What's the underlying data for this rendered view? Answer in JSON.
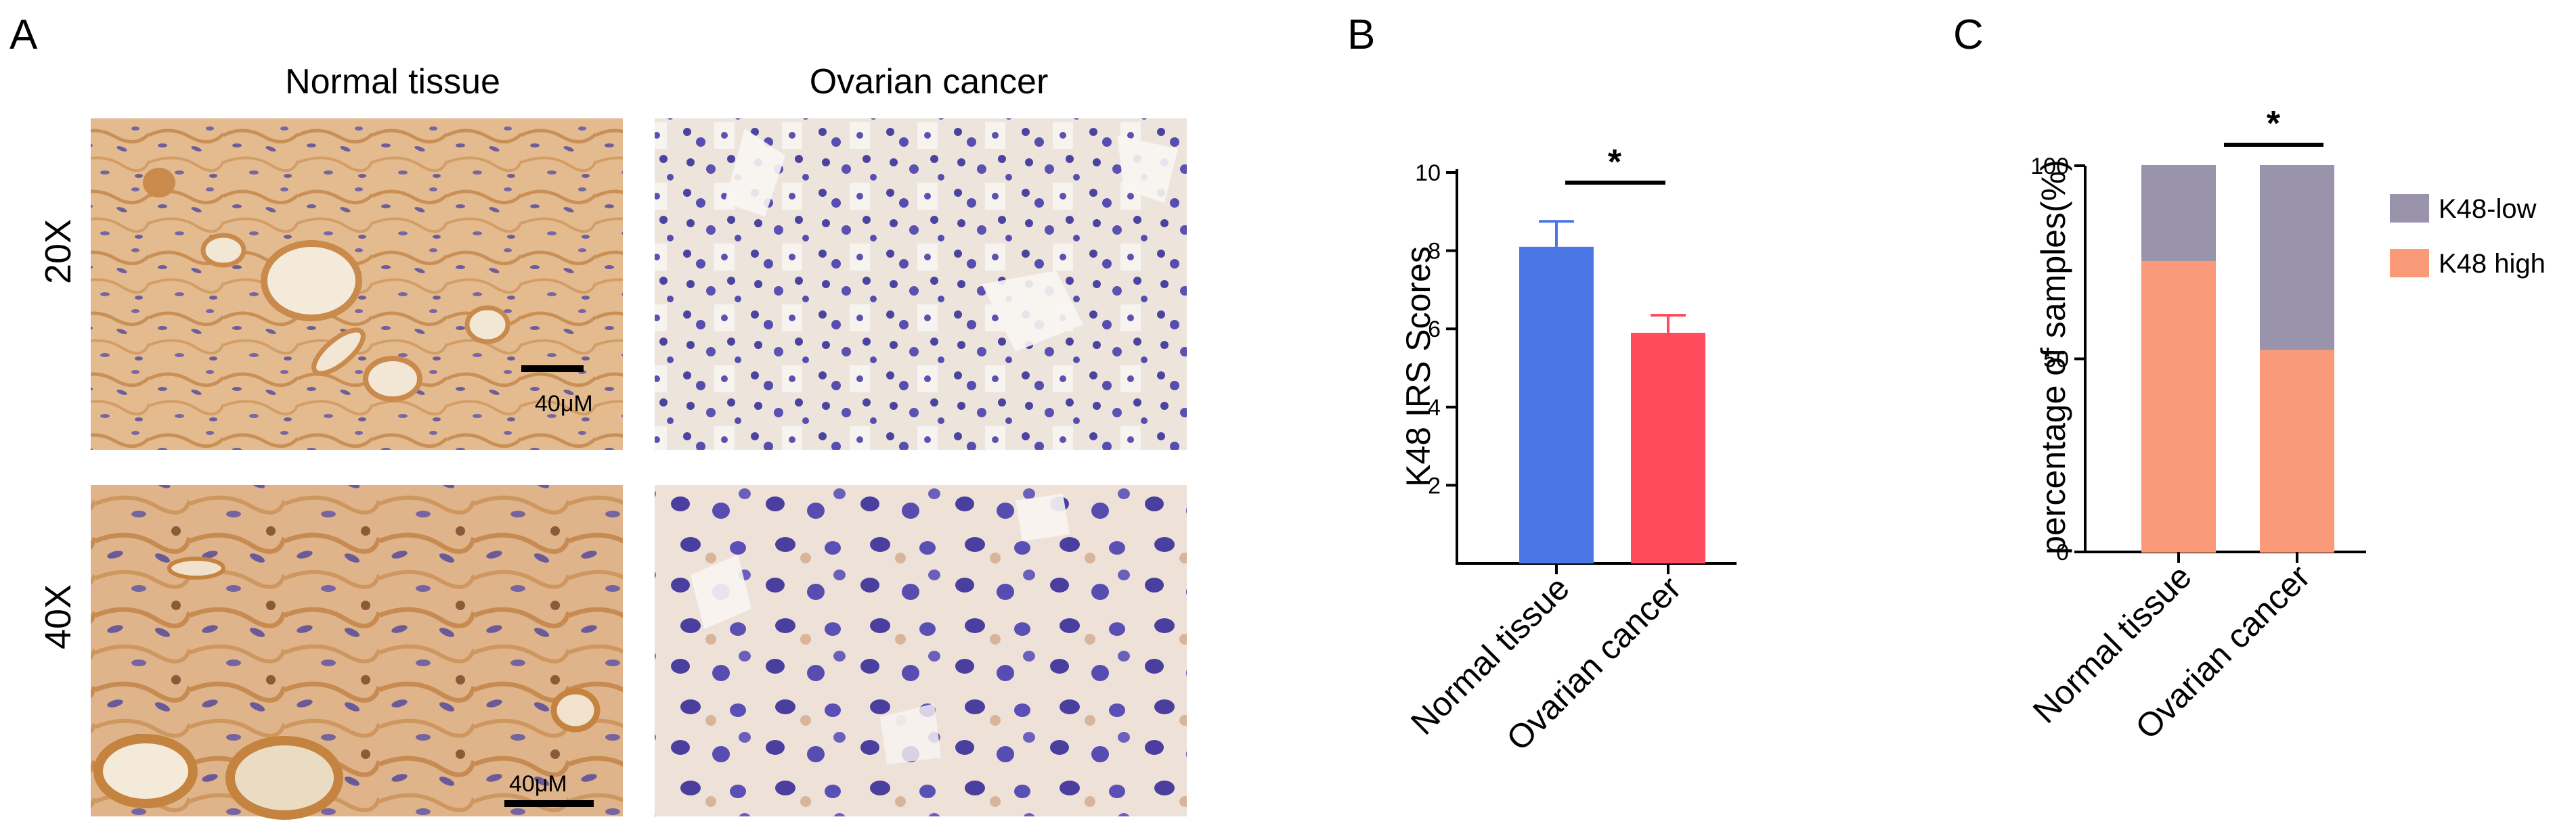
{
  "panel_labels": {
    "a": "A",
    "b": "B",
    "c": "C"
  },
  "micrographs": {
    "column_headers": [
      "Normal tissue",
      "Ovarian cancer"
    ],
    "row_labels": [
      "20X",
      "40X"
    ],
    "scale_bar": "40μM"
  },
  "colors": {
    "normal_bar": "#4a76e6",
    "cancer_bar": "#ff4b5c",
    "k48_low": "#9a93ac",
    "k48_high": "#fa9a78",
    "tissue_stain": "#d9a06a",
    "nuclei": "#4a3f9e"
  },
  "chart_data": [
    {
      "type": "bar",
      "panel": "B",
      "categories": [
        "Normal tissue",
        "Ovarian cancer"
      ],
      "values": [
        8.1,
        5.9
      ],
      "error": [
        0.65,
        0.45
      ],
      "ylabel": "K48 IRS Scores",
      "ylim": [
        0,
        10
      ],
      "yticks": [
        2,
        4,
        6,
        8,
        10
      ],
      "significance": "*",
      "grid": false
    },
    {
      "type": "bar",
      "stacked": true,
      "panel": "C",
      "categories": [
        "Normal tissue",
        "Ovarian cancer"
      ],
      "series": [
        {
          "name": "K48 high",
          "values": [
            75.5,
            52.5
          ]
        },
        {
          "name": "K48-low",
          "values": [
            24.5,
            47.5
          ]
        }
      ],
      "legend": [
        "K48-low",
        "K48 high"
      ],
      "legend_position": "right",
      "ylabel": "percentage of samples(%)",
      "ylim": [
        0,
        100
      ],
      "yticks": [
        0,
        50,
        100
      ],
      "significance": "*",
      "grid": false
    }
  ]
}
